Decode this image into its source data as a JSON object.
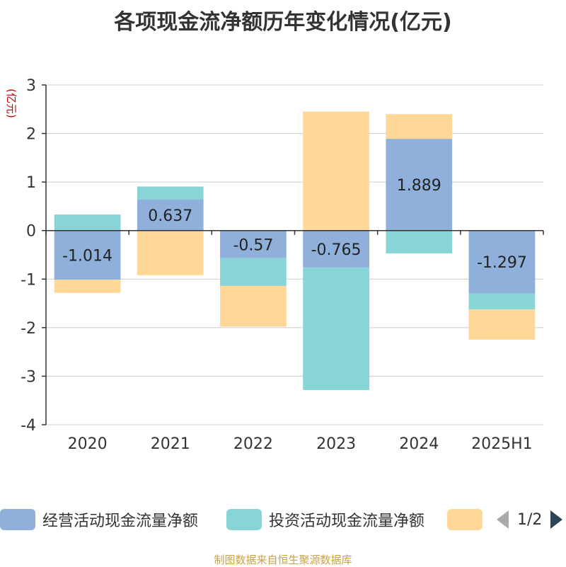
{
  "chart_data": {
    "type": "bar",
    "title": "各项现金流净额历年变化情况(亿元)",
    "ylabel": "(亿元)",
    "ylim": [
      -4,
      3
    ],
    "yticks": [
      3,
      2,
      1,
      0,
      -1,
      -2,
      -3,
      -4
    ],
    "grid": true,
    "stacked": true,
    "legend_position": "bottom",
    "categories": [
      "2020",
      "2021",
      "2022",
      "2023",
      "2024",
      "2025H1"
    ],
    "series": [
      {
        "name": "经营活动现金流量净额",
        "color": "#8eb0da",
        "values": [
          -1.014,
          0.637,
          -0.57,
          -0.765,
          1.889,
          -1.297
        ]
      },
      {
        "name": "投资活动现金流量净额",
        "color": "#88d5d7",
        "values": [
          0.33,
          0.27,
          -0.57,
          -2.52,
          -0.47,
          -0.33
        ]
      },
      {
        "name": "",
        "color": "#ffd898",
        "values": [
          -0.27,
          -0.92,
          -0.84,
          2.45,
          0.51,
          -0.62
        ]
      }
    ],
    "data_labels": [
      "-1.014",
      "0.637",
      "-0.57",
      "-0.765",
      "1.889",
      "-1.297"
    ]
  },
  "legend": {
    "page_indicator": "1/2"
  },
  "source": "制图数据来自恒生聚源数据库"
}
